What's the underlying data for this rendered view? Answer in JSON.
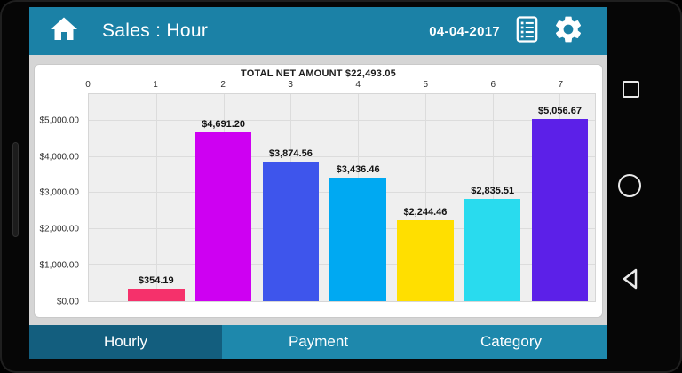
{
  "header": {
    "title": "Sales : Hour",
    "date": "04-04-2017",
    "home_icon": "home-icon",
    "report_icon": "report-list-icon",
    "settings_icon": "gear-icon"
  },
  "tabs": [
    {
      "label": "Hourly",
      "selected": true
    },
    {
      "label": "Payment",
      "selected": false
    },
    {
      "label": "Category",
      "selected": false
    }
  ],
  "nav_buttons": [
    {
      "name": "recents",
      "shape": "square-outline"
    },
    {
      "name": "home",
      "shape": "circle-outline"
    },
    {
      "name": "back",
      "shape": "triangle-left-outline"
    }
  ],
  "chart_data": {
    "type": "bar",
    "title": "TOTAL NET AMOUNT $22,493.05",
    "total_net_amount": 22493.05,
    "xlabel": "",
    "ylabel": "",
    "categories": [
      "0",
      "1",
      "2",
      "3",
      "4",
      "5",
      "6",
      "7"
    ],
    "values": [
      null,
      354.19,
      4691.2,
      3874.56,
      3436.46,
      2244.46,
      2835.51,
      5056.67
    ],
    "value_labels": [
      null,
      "$354.19",
      "$4,691.20",
      "$3,874.56",
      "$3,436.46",
      "$2,244.46",
      "$2,835.51",
      "$5,056.67"
    ],
    "bar_colors": [
      null,
      "#f5316b",
      "#ce00f2",
      "#3e55ec",
      "#00a9f2",
      "#ffdf00",
      "#29dbee",
      "#5c20e8"
    ],
    "y_tick_labels": [
      "$0.00",
      "$1,000.00",
      "$2,000.00",
      "$3,000.00",
      "$4,000.00",
      "$5,000.00"
    ],
    "y_tick_values": [
      0,
      1000,
      2000,
      3000,
      4000,
      5000
    ],
    "ylim": [
      0,
      5750
    ],
    "grid": true,
    "legend": "none",
    "x_axis_position": "top"
  },
  "colors": {
    "header_bg": "#1b81a6",
    "tab_bg": "#1e88ac",
    "tab_selected_bg": "#135e7e",
    "page_bg": "#d5d5d5",
    "card_bg": "#ffffff",
    "plot_bg": "#efefef",
    "gridline": "#dcdcdc",
    "device_bezel": "#060606"
  }
}
